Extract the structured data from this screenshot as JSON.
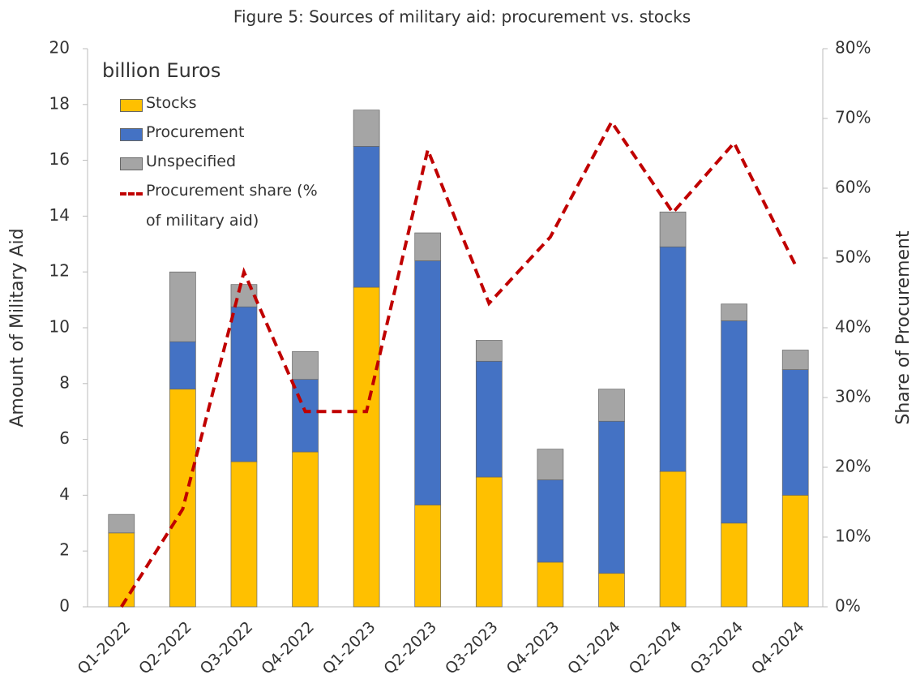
{
  "chart_data": {
    "type": "bar",
    "title": "Figure 5: Sources of military aid: procurement vs. stocks",
    "annotation": "billion Euros",
    "ylabel": "Amount of Military Aid",
    "y2label": "Share of Procurement",
    "stacked": true,
    "categories": [
      "Q1-2022",
      "Q2-2022",
      "Q3-2022",
      "Q4-2022",
      "Q1-2023",
      "Q2-2023",
      "Q3-2023",
      "Q4-2023",
      "Q1-2024",
      "Q2-2024",
      "Q3-2024",
      "Q4-2024"
    ],
    "series": [
      {
        "name": "Stocks",
        "color": "#ffc000",
        "values": [
          2.65,
          7.8,
          5.2,
          5.55,
          11.45,
          3.65,
          4.65,
          1.6,
          1.2,
          4.85,
          3.0,
          4.0
        ]
      },
      {
        "name": "Procurement",
        "color": "#4472c4",
        "values": [
          0,
          1.7,
          5.55,
          2.6,
          5.05,
          8.75,
          4.15,
          2.95,
          5.45,
          8.05,
          7.25,
          4.5
        ]
      },
      {
        "name": "Unspecified",
        "color": "#a5a5a5",
        "values": [
          0.66,
          2.5,
          0.8,
          1.0,
          1.3,
          1.0,
          0.75,
          1.1,
          1.15,
          1.25,
          0.6,
          0.7
        ]
      },
      {
        "name": "Procurement share (% of military aid)",
        "color": "#c00000",
        "type": "line",
        "axis": "y2",
        "dashed": true,
        "values": [
          0,
          14,
          48,
          28,
          28,
          65.5,
          43.5,
          53,
          69.5,
          56.5,
          66.5,
          49
        ]
      }
    ],
    "ylim": [
      0,
      20
    ],
    "yticks": [
      0,
      2,
      4,
      6,
      8,
      10,
      12,
      14,
      16,
      18,
      20
    ],
    "y2lim": [
      0,
      80
    ],
    "y2ticks": [
      {
        "value": 0,
        "label": "0%"
      },
      {
        "value": 10,
        "label": "10%"
      },
      {
        "value": 20,
        "label": "20%"
      },
      {
        "value": 30,
        "label": "30%"
      },
      {
        "value": 40,
        "label": "40%"
      },
      {
        "value": 50,
        "label": "50%"
      },
      {
        "value": 60,
        "label": "60%"
      },
      {
        "value": 70,
        "label": "70%"
      },
      {
        "value": 80,
        "label": "80%"
      }
    ],
    "legend": "upper left",
    "grid": false
  }
}
